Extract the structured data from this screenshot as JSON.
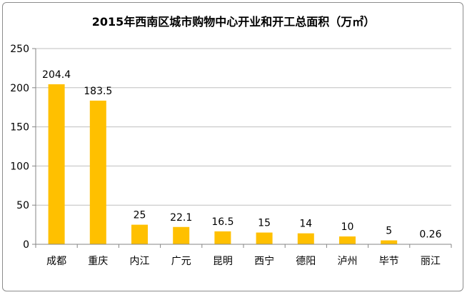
{
  "chart_data": {
    "type": "bar",
    "title": "2015年西南区城市购物中心开业和开工总面积（万㎡）",
    "categories": [
      "成都",
      "重庆",
      "内江",
      "广元",
      "昆明",
      "西宁",
      "德阳",
      "泸州",
      "毕节",
      "丽江"
    ],
    "values": [
      204.4,
      183.5,
      25,
      22.1,
      16.5,
      15,
      14,
      10,
      5,
      0.26
    ],
    "data_labels": [
      "204.4",
      "183.5",
      "25",
      "22.1",
      "16.5",
      "15",
      "14",
      "10",
      "5",
      "0.26"
    ],
    "ylim": [
      0,
      250
    ],
    "yticks": [
      0,
      50,
      100,
      150,
      200,
      250
    ],
    "grid": true,
    "legend": "none",
    "bar_color": "#FFC000",
    "grid_color": "#bfbfbf"
  }
}
